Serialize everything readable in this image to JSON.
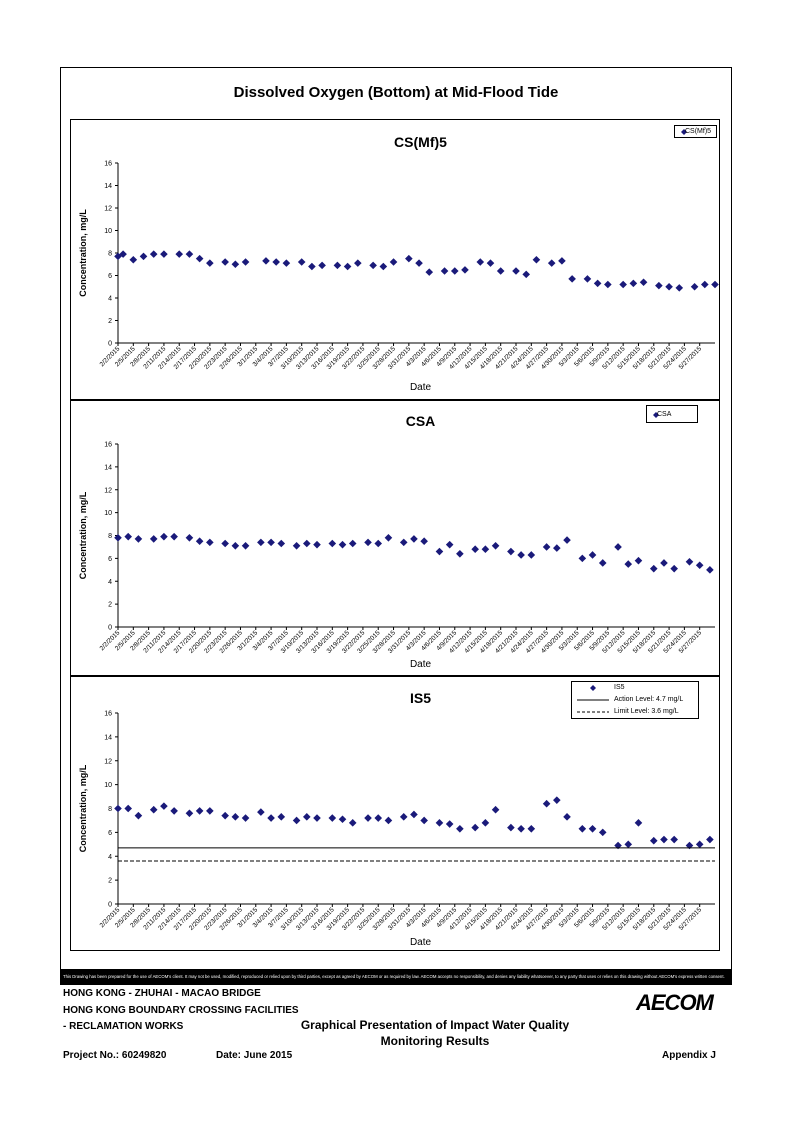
{
  "figure_title": "Dissolved Oxygen (Bottom) at Mid-Flood Tide",
  "disclaimer": "This Drawing has been prepared for the use of AECOM's client. It may not be used, modified, reproduced or relied upon by third parties, except as agreed by AECOM or as required by law. AECOM accepts no responsibility, and denies any liability whatsoever, to any party that uses or relies on this drawing without AECOM's express written consent.",
  "footer": {
    "line1": "HONG KONG - ZHUHAI - MACAO BRIDGE",
    "line2": "HONG KONG BOUNDARY CROSSING FACILITIES",
    "line3": "- RECLAMATION WORKS",
    "report_title_1": "Graphical Presentation of Impact Water Quality",
    "report_title_2": "Monitoring Results",
    "project_no": "Project No.: 60249820",
    "date": "Date: June 2015",
    "appendix": "Appendix J",
    "logo": "AECOM"
  },
  "colors": {
    "marker": "#1a1a7a",
    "axis": "#000000",
    "tick_text": "#000000"
  },
  "chart_data": [
    {
      "type": "scatter",
      "title": "CS(Mf)5",
      "xlabel": "Date",
      "ylabel": "Concentration, mg/L",
      "ylim": [
        0,
        16
      ],
      "yticks": [
        0,
        2,
        4,
        6,
        8,
        10,
        12,
        14,
        16
      ],
      "xlim": [
        "2015-02-02",
        "2015-05-30"
      ],
      "x_tick_labels": [
        "2/2/2015",
        "2/5/2015",
        "2/8/2015",
        "2/11/2015",
        "2/14/2015",
        "2/17/2015",
        "2/20/2015",
        "2/23/2015",
        "2/26/2015",
        "3/1/2015",
        "3/4/2015",
        "3/7/2015",
        "3/10/2015",
        "3/13/2015",
        "3/16/2015",
        "3/19/2015",
        "3/22/2015",
        "3/25/2015",
        "3/28/2015",
        "3/31/2015",
        "4/3/2015",
        "4/6/2015",
        "4/9/2015",
        "4/12/2015",
        "4/15/2015",
        "4/18/2015",
        "4/21/2015",
        "4/24/2015",
        "4/27/2015",
        "4/30/2015",
        "5/3/2015",
        "5/6/2015",
        "5/9/2015",
        "5/12/2015",
        "5/15/2015",
        "5/18/2015",
        "5/21/2015",
        "5/24/2015",
        "5/27/2015"
      ],
      "grid": false,
      "legend_position": "top-right",
      "series": [
        {
          "name": "CS(Mf)5",
          "marker": "diamond",
          "x": [
            "2015-02-02",
            "2015-02-03",
            "2015-02-05",
            "2015-02-07",
            "2015-02-09",
            "2015-02-11",
            "2015-02-14",
            "2015-02-16",
            "2015-02-18",
            "2015-02-20",
            "2015-02-23",
            "2015-02-25",
            "2015-02-27",
            "2015-03-03",
            "2015-03-05",
            "2015-03-07",
            "2015-03-10",
            "2015-03-12",
            "2015-03-14",
            "2015-03-17",
            "2015-03-19",
            "2015-03-21",
            "2015-03-24",
            "2015-03-26",
            "2015-03-28",
            "2015-03-31",
            "2015-04-02",
            "2015-04-04",
            "2015-04-07",
            "2015-04-09",
            "2015-04-11",
            "2015-04-14",
            "2015-04-16",
            "2015-04-18",
            "2015-04-21",
            "2015-04-23",
            "2015-04-25",
            "2015-04-28",
            "2015-04-30",
            "2015-05-02",
            "2015-05-05",
            "2015-05-07",
            "2015-05-09",
            "2015-05-12",
            "2015-05-14",
            "2015-05-16",
            "2015-05-19",
            "2015-05-21",
            "2015-05-23",
            "2015-05-26",
            "2015-05-28",
            "2015-05-30"
          ],
          "y": [
            7.7,
            7.9,
            7.4,
            7.7,
            7.9,
            7.9,
            7.9,
            7.9,
            7.5,
            7.1,
            7.2,
            7.0,
            7.2,
            7.3,
            7.2,
            7.1,
            7.2,
            6.8,
            6.9,
            6.9,
            6.8,
            7.1,
            6.9,
            6.8,
            7.2,
            7.5,
            7.1,
            6.3,
            6.4,
            6.4,
            6.5,
            7.2,
            7.1,
            6.4,
            6.4,
            6.1,
            7.4,
            7.1,
            7.3,
            5.7,
            5.7,
            5.3,
            5.2,
            5.2,
            5.3,
            5.4,
            5.1,
            5.0,
            4.9,
            5.0,
            5.2,
            5.2
          ]
        }
      ]
    },
    {
      "type": "scatter",
      "title": "CSA",
      "xlabel": "Date",
      "ylabel": "Concentration, mg/L",
      "ylim": [
        0,
        16
      ],
      "yticks": [
        0,
        2,
        4,
        6,
        8,
        10,
        12,
        14,
        16
      ],
      "xlim": [
        "2015-02-02",
        "2015-05-30"
      ],
      "x_tick_labels": [
        "2/2/2015",
        "2/5/2015",
        "2/8/2015",
        "2/11/2015",
        "2/14/2015",
        "2/17/2015",
        "2/20/2015",
        "2/23/2015",
        "2/26/2015",
        "3/1/2015",
        "3/4/2015",
        "3/7/2015",
        "3/10/2015",
        "3/13/2015",
        "3/16/2015",
        "3/19/2015",
        "3/22/2015",
        "3/25/2015",
        "3/28/2015",
        "3/31/2015",
        "4/3/2015",
        "4/6/2015",
        "4/9/2015",
        "4/12/2015",
        "4/15/2015",
        "4/18/2015",
        "4/21/2015",
        "4/24/2015",
        "4/27/2015",
        "4/30/2015",
        "5/3/2015",
        "5/6/2015",
        "5/9/2015",
        "5/12/2015",
        "5/15/2015",
        "5/18/2015",
        "5/21/2015",
        "5/24/2015",
        "5/27/2015"
      ],
      "grid": false,
      "legend_position": "top-right",
      "series": [
        {
          "name": "CSA",
          "marker": "diamond",
          "x": [
            "2015-02-02",
            "2015-02-04",
            "2015-02-06",
            "2015-02-09",
            "2015-02-11",
            "2015-02-13",
            "2015-02-16",
            "2015-02-18",
            "2015-02-20",
            "2015-02-23",
            "2015-02-25",
            "2015-02-27",
            "2015-03-02",
            "2015-03-04",
            "2015-03-06",
            "2015-03-09",
            "2015-03-11",
            "2015-03-13",
            "2015-03-16",
            "2015-03-18",
            "2015-03-20",
            "2015-03-23",
            "2015-03-25",
            "2015-03-27",
            "2015-03-30",
            "2015-04-01",
            "2015-04-03",
            "2015-04-06",
            "2015-04-08",
            "2015-04-10",
            "2015-04-13",
            "2015-04-15",
            "2015-04-17",
            "2015-04-20",
            "2015-04-22",
            "2015-04-24",
            "2015-04-27",
            "2015-04-29",
            "2015-05-01",
            "2015-05-04",
            "2015-05-06",
            "2015-05-08",
            "2015-05-11",
            "2015-05-13",
            "2015-05-15",
            "2015-05-18",
            "2015-05-20",
            "2015-05-22",
            "2015-05-25",
            "2015-05-27",
            "2015-05-29"
          ],
          "y": [
            7.8,
            7.9,
            7.7,
            7.7,
            7.9,
            7.9,
            7.8,
            7.5,
            7.4,
            7.3,
            7.1,
            7.1,
            7.4,
            7.4,
            7.3,
            7.1,
            7.3,
            7.2,
            7.3,
            7.2,
            7.3,
            7.4,
            7.3,
            7.8,
            7.4,
            7.7,
            7.5,
            6.6,
            7.2,
            6.4,
            6.8,
            6.8,
            7.1,
            6.6,
            6.3,
            6.3,
            7.0,
            6.9,
            7.6,
            6.0,
            6.3,
            5.6,
            7.0,
            5.5,
            5.8,
            5.1,
            5.6,
            5.1,
            5.7,
            5.4,
            5.0
          ]
        }
      ]
    },
    {
      "type": "scatter",
      "title": "IS5",
      "xlabel": "Date",
      "ylabel": "Concentration, mg/L",
      "ylim": [
        0,
        16
      ],
      "yticks": [
        0,
        2,
        4,
        6,
        8,
        10,
        12,
        14,
        16
      ],
      "xlim": [
        "2015-02-02",
        "2015-05-30"
      ],
      "x_tick_labels": [
        "2/2/2015",
        "2/5/2015",
        "2/8/2015",
        "2/11/2015",
        "2/14/2015",
        "2/17/2015",
        "2/20/2015",
        "2/23/2015",
        "2/26/2015",
        "3/1/2015",
        "3/4/2015",
        "3/7/2015",
        "3/10/2015",
        "3/13/2015",
        "3/16/2015",
        "3/19/2015",
        "3/22/2015",
        "3/25/2015",
        "3/28/2015",
        "3/31/2015",
        "4/3/2015",
        "4/6/2015",
        "4/9/2015",
        "4/12/2015",
        "4/15/2015",
        "4/18/2015",
        "4/21/2015",
        "4/24/2015",
        "4/27/2015",
        "4/30/2015",
        "5/3/2015",
        "5/6/2015",
        "5/9/2015",
        "5/12/2015",
        "5/15/2015",
        "5/18/2015",
        "5/21/2015",
        "5/24/2015",
        "5/27/2015"
      ],
      "grid": false,
      "legend_position": "top-right",
      "series": [
        {
          "name": "IS5",
          "marker": "diamond",
          "x": [
            "2015-02-02",
            "2015-02-04",
            "2015-02-06",
            "2015-02-09",
            "2015-02-11",
            "2015-02-13",
            "2015-02-16",
            "2015-02-18",
            "2015-02-20",
            "2015-02-23",
            "2015-02-25",
            "2015-02-27",
            "2015-03-02",
            "2015-03-04",
            "2015-03-06",
            "2015-03-09",
            "2015-03-11",
            "2015-03-13",
            "2015-03-16",
            "2015-03-18",
            "2015-03-20",
            "2015-03-23",
            "2015-03-25",
            "2015-03-27",
            "2015-03-30",
            "2015-04-01",
            "2015-04-03",
            "2015-04-06",
            "2015-04-08",
            "2015-04-10",
            "2015-04-13",
            "2015-04-15",
            "2015-04-17",
            "2015-04-20",
            "2015-04-22",
            "2015-04-24",
            "2015-04-27",
            "2015-04-29",
            "2015-05-01",
            "2015-05-04",
            "2015-05-06",
            "2015-05-08",
            "2015-05-11",
            "2015-05-13",
            "2015-05-15",
            "2015-05-18",
            "2015-05-20",
            "2015-05-22",
            "2015-05-25",
            "2015-05-27",
            "2015-05-29"
          ],
          "y": [
            8.0,
            8.0,
            7.4,
            7.9,
            8.2,
            7.8,
            7.6,
            7.8,
            7.8,
            7.4,
            7.3,
            7.2,
            7.7,
            7.2,
            7.3,
            7.0,
            7.3,
            7.2,
            7.2,
            7.1,
            6.8,
            7.2,
            7.2,
            7.0,
            7.3,
            7.5,
            7.0,
            6.8,
            6.7,
            6.3,
            6.4,
            6.8,
            7.9,
            6.4,
            6.3,
            6.3,
            8.4,
            8.7,
            7.3,
            6.3,
            6.3,
            6.0,
            4.9,
            5.0,
            6.8,
            5.3,
            5.4,
            5.4,
            4.9,
            5.0,
            5.4
          ]
        },
        {
          "name": "Action Level: 4.7 mg/L",
          "type": "hline",
          "y": 4.7,
          "style": "solid"
        },
        {
          "name": "Limit Level: 3.6 mg/L",
          "type": "hline",
          "y": 3.6,
          "style": "dashed"
        }
      ]
    }
  ]
}
